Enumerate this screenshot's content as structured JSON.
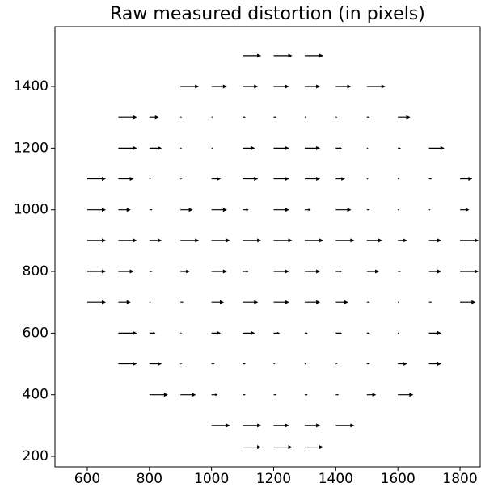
{
  "chart_data": {
    "type": "quiver",
    "title": "Raw measured distortion (in pixels)",
    "xlim": [
      496,
      1865
    ],
    "ylim": [
      166,
      1594
    ],
    "xticks": [
      600,
      800,
      1000,
      1200,
      1400,
      1600,
      1800
    ],
    "yticks": [
      200,
      400,
      600,
      800,
      1000,
      1200,
      1400
    ],
    "color": "#000000",
    "rows": [
      {
        "y": 1500,
        "x": [
          1100,
          1200,
          1300
        ],
        "u": [
          60,
          60,
          60
        ]
      },
      {
        "y": 1400,
        "x": [
          900,
          1000,
          1100,
          1200,
          1300,
          1400,
          1500
        ],
        "u": [
          60,
          50,
          50,
          50,
          50,
          50,
          60
        ]
      },
      {
        "y": 1300,
        "x": [
          700,
          800,
          900,
          1000,
          1100,
          1200,
          1300,
          1400,
          1500,
          1600
        ],
        "u": [
          60,
          30,
          5,
          5,
          10,
          10,
          5,
          5,
          10,
          40
        ]
      },
      {
        "y": 1200,
        "x": [
          700,
          800,
          900,
          1000,
          1100,
          1200,
          1300,
          1400,
          1500,
          1600,
          1700
        ],
        "u": [
          60,
          40,
          5,
          5,
          40,
          50,
          50,
          20,
          5,
          10,
          50
        ]
      },
      {
        "y": 1100,
        "x": [
          600,
          700,
          800,
          900,
          1000,
          1100,
          1200,
          1300,
          1400,
          1500,
          1600,
          1700,
          1800
        ],
        "u": [
          60,
          50,
          5,
          5,
          30,
          50,
          50,
          50,
          30,
          5,
          5,
          10,
          40
        ]
      },
      {
        "y": 1000,
        "x": [
          600,
          700,
          800,
          900,
          1000,
          1100,
          1200,
          1300,
          1400,
          1500,
          1600,
          1700,
          1800
        ],
        "u": [
          60,
          40,
          10,
          40,
          50,
          20,
          50,
          20,
          50,
          10,
          5,
          5,
          30
        ]
      },
      {
        "y": 900,
        "x": [
          600,
          700,
          800,
          900,
          1000,
          1100,
          1200,
          1300,
          1400,
          1500,
          1600,
          1700,
          1800
        ],
        "u": [
          60,
          60,
          40,
          60,
          60,
          60,
          60,
          60,
          60,
          50,
          30,
          40,
          60
        ]
      },
      {
        "y": 800,
        "x": [
          600,
          700,
          800,
          900,
          1000,
          1100,
          1200,
          1300,
          1400,
          1500,
          1600,
          1700,
          1800
        ],
        "u": [
          60,
          50,
          10,
          30,
          50,
          20,
          50,
          50,
          20,
          40,
          10,
          40,
          60
        ]
      },
      {
        "y": 700,
        "x": [
          600,
          700,
          800,
          900,
          1000,
          1100,
          1200,
          1300,
          1400,
          1500,
          1600,
          1700,
          1800
        ],
        "u": [
          60,
          40,
          5,
          10,
          40,
          50,
          50,
          50,
          40,
          10,
          5,
          10,
          50
        ]
      },
      {
        "y": 600,
        "x": [
          700,
          800,
          900,
          1000,
          1100,
          1200,
          1300,
          1400,
          1500,
          1600,
          1700
        ],
        "u": [
          60,
          20,
          5,
          30,
          40,
          20,
          10,
          20,
          10,
          5,
          40
        ]
      },
      {
        "y": 500,
        "x": [
          700,
          800,
          900,
          1000,
          1100,
          1200,
          1300,
          1400,
          1500,
          1600,
          1700
        ],
        "u": [
          60,
          40,
          5,
          10,
          10,
          5,
          5,
          5,
          10,
          30,
          40
        ]
      },
      {
        "y": 400,
        "x": [
          800,
          900,
          1000,
          1100,
          1200,
          1300,
          1400,
          1500,
          1600
        ],
        "u": [
          60,
          50,
          20,
          10,
          10,
          10,
          10,
          30,
          50
        ]
      },
      {
        "y": 300,
        "x": [
          1000,
          1100,
          1200,
          1300,
          1400
        ],
        "u": [
          60,
          60,
          50,
          50,
          60
        ]
      },
      {
        "y": 230,
        "x": [
          1100,
          1200,
          1300
        ],
        "u": [
          60,
          60,
          60
        ]
      }
    ]
  }
}
